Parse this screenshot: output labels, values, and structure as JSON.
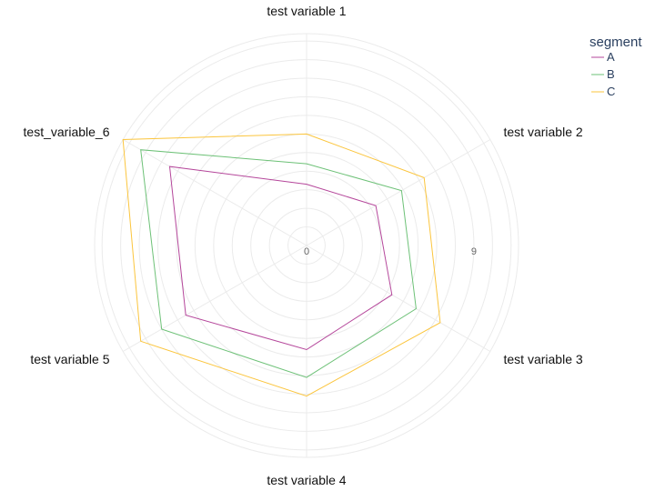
{
  "chart_data": {
    "type": "radar",
    "categories": [
      "test variable 1",
      "test variable 2",
      "test variable 3",
      "test variable 4",
      "test variable 5",
      "test_variable_6"
    ],
    "series": [
      {
        "name": "A",
        "values": [
          3.3,
          4.3,
          5.3,
          5.6,
          7.5,
          8.5
        ],
        "color": "#b5479b"
      },
      {
        "name": "B",
        "values": [
          4.4,
          5.9,
          6.8,
          7.1,
          9.0,
          10.3
        ],
        "color": "#6dc177"
      },
      {
        "name": "C",
        "values": [
          6.0,
          7.3,
          8.3,
          8.1,
          10.3,
          11.4
        ],
        "color": "#fbc53d"
      }
    ],
    "radial_range": [
      0,
      11.4
    ],
    "radial_ticks": [
      0,
      9
    ],
    "tick_labels": [
      "0",
      "9"
    ],
    "legend": {
      "title": "segment",
      "position": "top-right"
    },
    "grid": true
  }
}
